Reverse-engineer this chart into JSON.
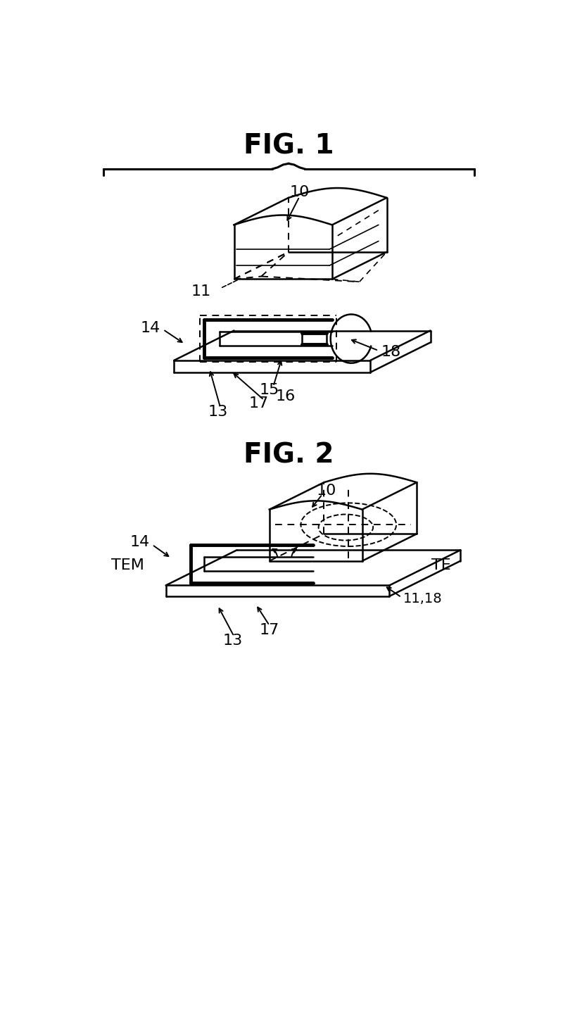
{
  "bg": "#ffffff",
  "lc": "#000000",
  "fig1_title": "FIG. 1",
  "fig2_title": "FIG. 2",
  "fontsize_title": 28,
  "fontsize_label": 14,
  "lw": 1.8,
  "lw_thick": 3.5,
  "lw_dash": 1.4
}
